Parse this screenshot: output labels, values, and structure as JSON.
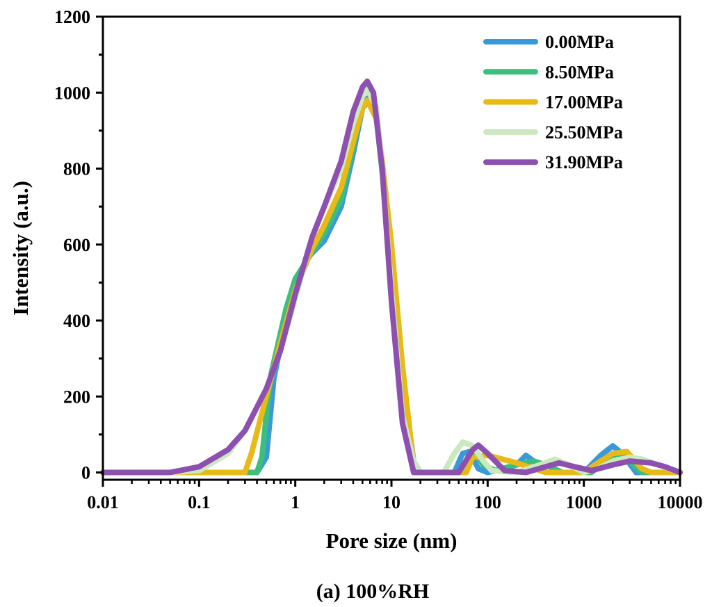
{
  "chart_data": {
    "type": "line",
    "title": "",
    "caption": "(a) 100%RH",
    "xlabel": "Pore size (nm)",
    "ylabel": "Intensity (a.u.)",
    "xscale": "log",
    "xlim": [
      0.01,
      10000
    ],
    "ylim": [
      0,
      1200
    ],
    "xticks": [
      "0.01",
      "0.1",
      "1",
      "10",
      "100",
      "1000",
      "10000"
    ],
    "yticks": [
      "0",
      "200",
      "400",
      "600",
      "800",
      "1000",
      "1200"
    ],
    "grid": false,
    "legend_position": "top-right",
    "series": [
      {
        "name": "0.00MPa",
        "color": "#3a9ad9",
        "x": [
          0.01,
          0.4,
          0.5,
          0.6,
          0.8,
          1,
          1.4,
          2,
          3,
          4,
          5,
          5.6,
          7,
          8,
          10,
          13,
          17,
          20,
          45,
          55,
          65,
          80,
          100,
          200,
          250,
          300,
          400,
          1000,
          1500,
          2000,
          2500,
          3500,
          10000
        ],
        "y": [
          0,
          0,
          40,
          250,
          400,
          505,
          570,
          610,
          700,
          840,
          960,
          985,
          940,
          800,
          550,
          250,
          30,
          0,
          0,
          50,
          55,
          10,
          0,
          20,
          45,
          30,
          0,
          0,
          45,
          70,
          50,
          0,
          0
        ]
      },
      {
        "name": "8.50MPa",
        "color": "#3cbf7a",
        "x": [
          0.01,
          0.4,
          0.45,
          0.55,
          0.8,
          1,
          1.5,
          2,
          3,
          4,
          5,
          6,
          7,
          10,
          13,
          17,
          20,
          50,
          60,
          75,
          90,
          120,
          200,
          300,
          400,
          600,
          1200,
          1700,
          2200,
          3000,
          4000,
          10000
        ],
        "y": [
          0,
          0,
          40,
          250,
          430,
          510,
          580,
          630,
          720,
          860,
          960,
          980,
          930,
          560,
          250,
          20,
          0,
          0,
          30,
          50,
          20,
          5,
          20,
          30,
          20,
          0,
          0,
          30,
          50,
          30,
          0,
          0
        ]
      },
      {
        "name": "17.00MPa",
        "color": "#e9b917",
        "x": [
          0.01,
          0.3,
          0.35,
          0.5,
          0.7,
          1,
          1.5,
          2,
          3,
          4,
          5,
          5.6,
          7,
          8,
          10,
          13,
          17,
          20,
          60,
          70,
          100,
          200,
          300,
          400,
          1000,
          1500,
          2000,
          2800,
          4000,
          5000,
          10000
        ],
        "y": [
          0,
          0,
          50,
          200,
          340,
          480,
          590,
          650,
          750,
          870,
          960,
          980,
          930,
          820,
          600,
          280,
          20,
          0,
          0,
          40,
          45,
          25,
          10,
          0,
          0,
          30,
          50,
          55,
          10,
          0,
          0
        ]
      },
      {
        "name": "25.50MPa",
        "color": "#cbe8bf",
        "x": [
          0.01,
          0.05,
          0.1,
          0.2,
          0.3,
          0.5,
          0.7,
          1,
          1.5,
          2,
          3,
          4,
          5,
          5.6,
          7,
          8,
          10,
          13,
          17,
          20,
          35,
          45,
          55,
          70,
          90,
          110,
          200,
          350,
          500,
          700,
          1000,
          1400,
          2000,
          3000,
          4000,
          6000,
          10000
        ],
        "y": [
          0,
          0,
          5,
          50,
          110,
          220,
          320,
          460,
          620,
          700,
          800,
          920,
          990,
          1010,
          960,
          800,
          480,
          150,
          30,
          0,
          0,
          50,
          80,
          70,
          30,
          5,
          0,
          20,
          35,
          20,
          0,
          10,
          30,
          40,
          35,
          20,
          0
        ]
      },
      {
        "name": "31.90MPa",
        "color": "#8e50b0",
        "x": [
          0.01,
          0.05,
          0.1,
          0.2,
          0.3,
          0.5,
          0.7,
          1,
          1.5,
          2,
          3,
          4,
          5,
          5.6,
          6.5,
          8,
          10,
          13,
          17,
          50,
          70,
          80,
          100,
          150,
          250,
          400,
          550,
          800,
          1200,
          2000,
          3000,
          5000,
          7000,
          10000
        ],
        "y": [
          0,
          0,
          15,
          60,
          110,
          220,
          320,
          470,
          620,
          700,
          820,
          950,
          1015,
          1030,
          1000,
          800,
          450,
          130,
          0,
          0,
          60,
          72,
          50,
          5,
          0,
          15,
          25,
          15,
          5,
          20,
          30,
          25,
          15,
          0
        ]
      }
    ]
  }
}
